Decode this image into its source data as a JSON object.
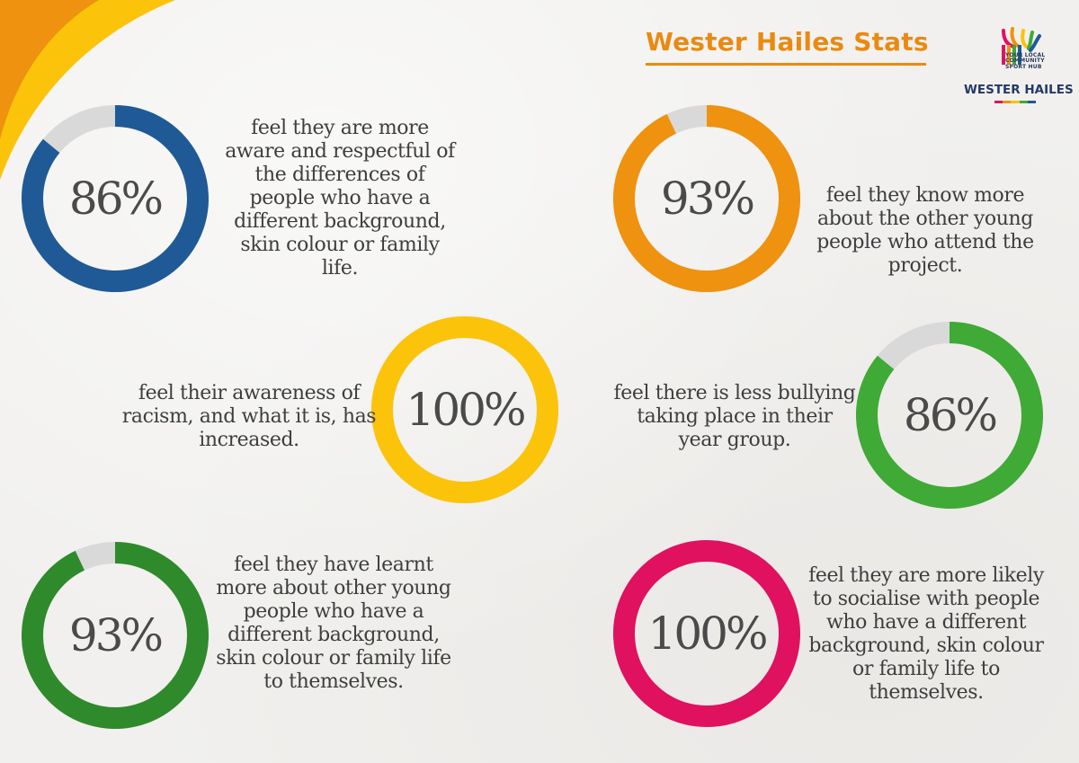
{
  "title": "Wester Hailes Stats",
  "logo": {
    "tagline_lines": [
      "YOUR LOCAL",
      "COMMUNITY",
      "SPORT HUB"
    ],
    "name": "WESTER HAILES"
  },
  "colors": {
    "accent": "#e98a12",
    "track": "#d9d9d9",
    "blue": "#1f5a96",
    "orange": "#ee920f",
    "yellow": "#fcc30b",
    "light_green": "#3faa35",
    "dark_green": "#2f8a2c",
    "magenta": "#e0115f"
  },
  "chart_data": [
    {
      "type": "pie",
      "value": 86,
      "label": "86%",
      "color": "#1f5a96",
      "caption": "feel they are more aware and respectful of the differences of people who have a different background, skin colour or family life."
    },
    {
      "type": "pie",
      "value": 93,
      "label": "93%",
      "color": "#ee920f",
      "caption": "feel they know more about the other young people who attend the project."
    },
    {
      "type": "pie",
      "value": 100,
      "label": "100%",
      "color": "#fcc30b",
      "caption": "feel their awareness of racism, and what it is, has increased."
    },
    {
      "type": "pie",
      "value": 86,
      "label": "86%",
      "color": "#3faa35",
      "caption": "feel there is less bullying taking place in their year group."
    },
    {
      "type": "pie",
      "value": 93,
      "label": "93%",
      "color": "#2f8a2c",
      "caption": "feel they have learnt more about other young people who have a different background, skin colour or family life to themselves."
    },
    {
      "type": "pie",
      "value": 100,
      "label": "100%",
      "color": "#e0115f",
      "caption": "feel they are more likely to socialise with people who have a different background, skin colour or family life to themselves."
    }
  ]
}
